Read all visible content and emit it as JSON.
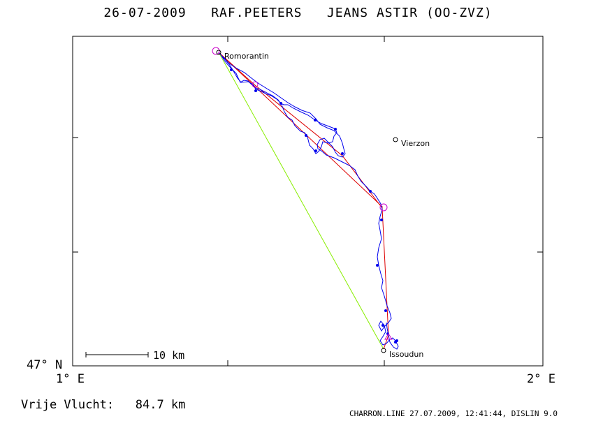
{
  "header": {
    "title": "26-07-2009   RAF.PEETERS   JEANS ASTIR (OO-ZVZ)"
  },
  "axes": {
    "lat_label": "47° N",
    "lon_left_label": "1° E",
    "lon_right_label": "2° E"
  },
  "places": [
    {
      "name": "Romorantin"
    },
    {
      "name": "Vierzon"
    },
    {
      "name": "Issoudun"
    }
  ],
  "scale_bar": {
    "label": "10 km"
  },
  "summary": {
    "distance_text": "Vrije Vlucht:   84.7 km"
  },
  "footer": {
    "text": "CHARRON.LINE 27.07.2009, 12:41:44, DISLIN 9.0"
  },
  "colors": {
    "track": "#0000ee",
    "task_line": "#dd0000",
    "free_flight_line": "#88ee00",
    "turnpoint_marker": "#cc00cc",
    "frame": "#000000"
  }
}
